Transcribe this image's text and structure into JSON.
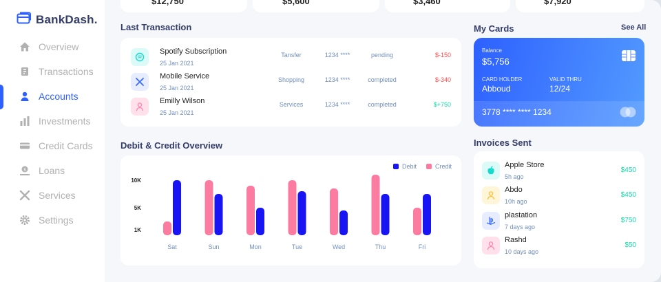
{
  "app": {
    "logo_text": "BankDash."
  },
  "sidebar": {
    "items": [
      {
        "label": "Overview",
        "icon": "home-icon"
      },
      {
        "label": "Transactions",
        "icon": "transfer-icon"
      },
      {
        "label": "Accounts",
        "icon": "user-icon",
        "active": true
      },
      {
        "label": "Investments",
        "icon": "investment-icon"
      },
      {
        "label": "Credit Cards",
        "icon": "credit-card-icon"
      },
      {
        "label": "Loans",
        "icon": "loan-icon"
      },
      {
        "label": "Services",
        "icon": "services-icon"
      },
      {
        "label": "Settings",
        "icon": "gear-icon"
      }
    ]
  },
  "top_cards": [
    {
      "value": "$12,750"
    },
    {
      "value": "$5,600"
    },
    {
      "value": "$3,460"
    },
    {
      "value": "$7,920"
    }
  ],
  "last_transaction": {
    "title": "Last Transaction",
    "rows": [
      {
        "name": "Spotify Subscription",
        "date": "25 Jan 2021",
        "type": "Tansfer",
        "card": "1234 ****",
        "status": "pending",
        "amount": "$-150",
        "positive": false
      },
      {
        "name": "Mobile Service",
        "date": "25 Jan 2021",
        "type": "Shopping",
        "card": "1234 ****",
        "status": "completed",
        "amount": "$-340",
        "positive": false
      },
      {
        "name": "Emilly Wilson",
        "date": "25 Jan 2021",
        "type": "Services",
        "card": "1234 ****",
        "status": "completed",
        "amount": "$+750",
        "positive": true
      }
    ]
  },
  "my_cards": {
    "title": "My Cards",
    "see_all": "See All",
    "card": {
      "balance_label": "Balance",
      "balance": "$5,756",
      "holder_label": "CARD HOLDER",
      "holder": "Abboud",
      "valid_label": "VALID THRU",
      "valid": "12/24",
      "number": "3778 **** **** 1234"
    }
  },
  "overview": {
    "title": "Debit & Credit Overview",
    "legend_debit": "Debit",
    "legend_credit": "Credit"
  },
  "chart_data": {
    "type": "bar",
    "categories": [
      "Sat",
      "Sun",
      "Mon",
      "Tue",
      "Wed",
      "Thu",
      "Fri"
    ],
    "series": [
      {
        "name": "Debit",
        "color": "#1814f3",
        "values": [
          10,
          7.5,
          5,
          8,
          4.5,
          7.5,
          7.5
        ]
      },
      {
        "name": "Credit",
        "color": "#fc7ba0",
        "values": [
          2.5,
          10,
          9,
          10,
          8.5,
          11,
          5
        ]
      }
    ],
    "yticks": [
      "10K",
      "5K",
      "1K"
    ],
    "ylim": [
      0,
      12
    ]
  },
  "invoices": {
    "title": "Invoices Sent",
    "rows": [
      {
        "name": "Apple Store",
        "time": "5h ago",
        "amount": "$450",
        "icon": "apple-icon",
        "bg": "#dcfaf8",
        "fg": "#16dbcc"
      },
      {
        "name": "Abdo",
        "time": "10h ago",
        "amount": "$450",
        "icon": "user-icon",
        "bg": "#fff5d9",
        "fg": "#ffbb38"
      },
      {
        "name": "plastation",
        "time": "7 days ago",
        "amount": "$750",
        "icon": "playstation-icon",
        "bg": "#e7edff",
        "fg": "#396aff"
      },
      {
        "name": "Rashd",
        "time": "10 days ago",
        "amount": "$50",
        "icon": "user-icon",
        "bg": "#ffe0eb",
        "fg": "#ff82ac"
      }
    ]
  }
}
